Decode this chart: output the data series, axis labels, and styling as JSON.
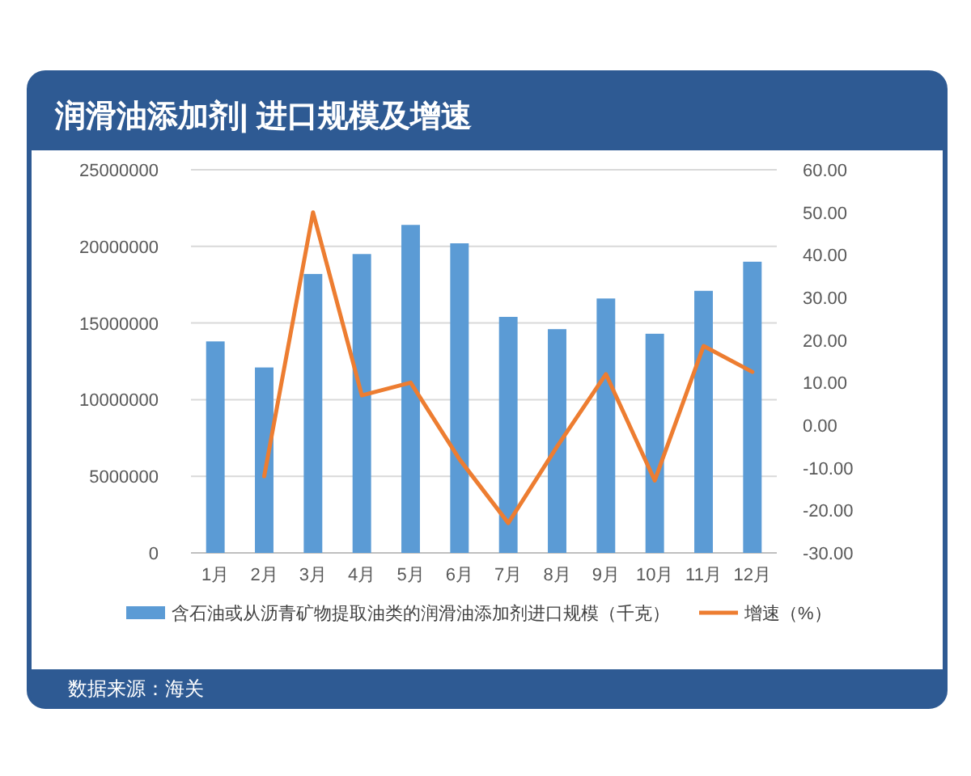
{
  "chart_data": {
    "type": "bar",
    "title": "润滑油添加剂| 进口规模及增速",
    "categories": [
      "1月",
      "2月",
      "3月",
      "4月",
      "5月",
      "6月",
      "7月",
      "8月",
      "9月",
      "10月",
      "11月",
      "12月"
    ],
    "series": [
      {
        "name": "含石油或从沥青矿物提取油类的润滑油添加剂进口规模（千克）",
        "color": "#5b9bd5",
        "values": [
          13800000,
          12100000,
          18200000,
          19500000,
          21400000,
          20200000,
          15400000,
          14600000,
          16600000,
          14300000,
          17100000,
          19000000
        ]
      },
      {
        "name": "增速（%）",
        "type": "line",
        "axis": "y2",
        "color": "#ed7d31",
        "values": [
          null,
          -12,
          50,
          7,
          10,
          -8,
          -23,
          -5,
          12,
          -13,
          18.6,
          12.5
        ]
      }
    ],
    "ylim": [
      0,
      25000000
    ],
    "yticks": [
      0,
      5000000,
      10000000,
      15000000,
      20000000,
      25000000
    ],
    "y2lim": [
      -30,
      60
    ],
    "y2ticks": [
      {
        "value": -30,
        "label": "-30.00"
      },
      {
        "value": -20,
        "label": "-20.00"
      },
      {
        "value": -10,
        "label": "-10.00"
      },
      {
        "value": 0,
        "label": "0.00"
      },
      {
        "value": 10,
        "label": "10.00"
      },
      {
        "value": 20,
        "label": "20.00"
      },
      {
        "value": 30,
        "label": "30.00"
      },
      {
        "value": 40,
        "label": "40.00"
      },
      {
        "value": 50,
        "label": "50.00"
      },
      {
        "value": 60,
        "label": "60.00"
      }
    ],
    "grid": "y",
    "legend": "bottom",
    "annotations": [
      "数据来源：海关"
    ]
  }
}
